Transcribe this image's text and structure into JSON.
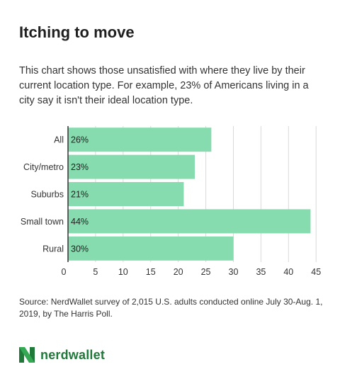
{
  "title": "Itching to move",
  "description": "This chart shows those unsatisfied with where they live by their current location type. For example, 23% of Americans living in a city say it isn't their ideal location type.",
  "source": "Source: NerdWallet survey of 2,015 U.S. adults conducted online July 30-Aug. 1, 2019, by The Harris Poll.",
  "brand": {
    "name": "nerdwallet",
    "logo_icon": "nerdwallet-n-icon",
    "color": "#1f7a3a"
  },
  "colors": {
    "bar": "#86dcae",
    "grid": "#d9d9d9",
    "axis": "#333333"
  },
  "chart_data": {
    "type": "bar",
    "orientation": "horizontal",
    "categories": [
      "All",
      "City/metro",
      "Suburbs",
      "Small town",
      "Rural"
    ],
    "values": [
      26,
      23,
      21,
      44,
      30
    ],
    "data_labels": [
      "26%",
      "23%",
      "21%",
      "44%",
      "30%"
    ],
    "xlim": [
      0,
      46
    ],
    "ticks": [
      0,
      5,
      10,
      15,
      20,
      25,
      30,
      35,
      40,
      45
    ],
    "grid": true
  }
}
